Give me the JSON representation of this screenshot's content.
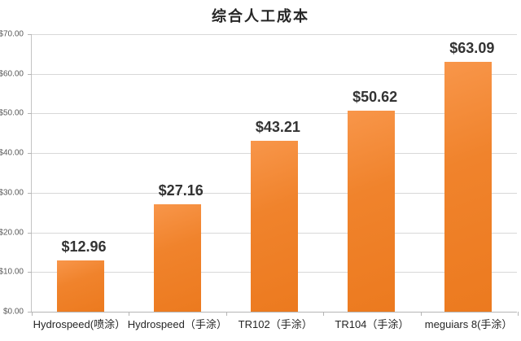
{
  "chart_data": {
    "type": "bar",
    "title": "综合人工成本",
    "categories": [
      "Hydrospeed(喷涂）",
      "Hydrospeed（手涂）",
      "TR102（手涂）",
      "TR104（手涂）",
      "meguiars 8(手涂）"
    ],
    "values": [
      12.96,
      27.16,
      43.21,
      50.62,
      63.09
    ],
    "value_labels": [
      "$12.96",
      "$27.16",
      "$43.21",
      "$50.62",
      "$63.09"
    ],
    "xlabel": "",
    "ylabel": "",
    "ylim": [
      0,
      70
    ],
    "y_tick_step": 10,
    "y_tick_labels": [
      "$0.00",
      "$10.00",
      "$20.00",
      "$30.00",
      "$40.00",
      "$50.00",
      "$60.00",
      "$70.00"
    ],
    "grid": true,
    "legend": "none",
    "colors": {
      "bar_top": "#f8964a",
      "bar_bottom": "#ec7a1f",
      "gridline": "#d8d8d8",
      "axis_line": "#b5b5b5",
      "title_text": "#262626",
      "value_label_text": "#333333",
      "y_axis_text": "#595959",
      "x_axis_text": "#262626",
      "background": "#ffffff"
    }
  }
}
